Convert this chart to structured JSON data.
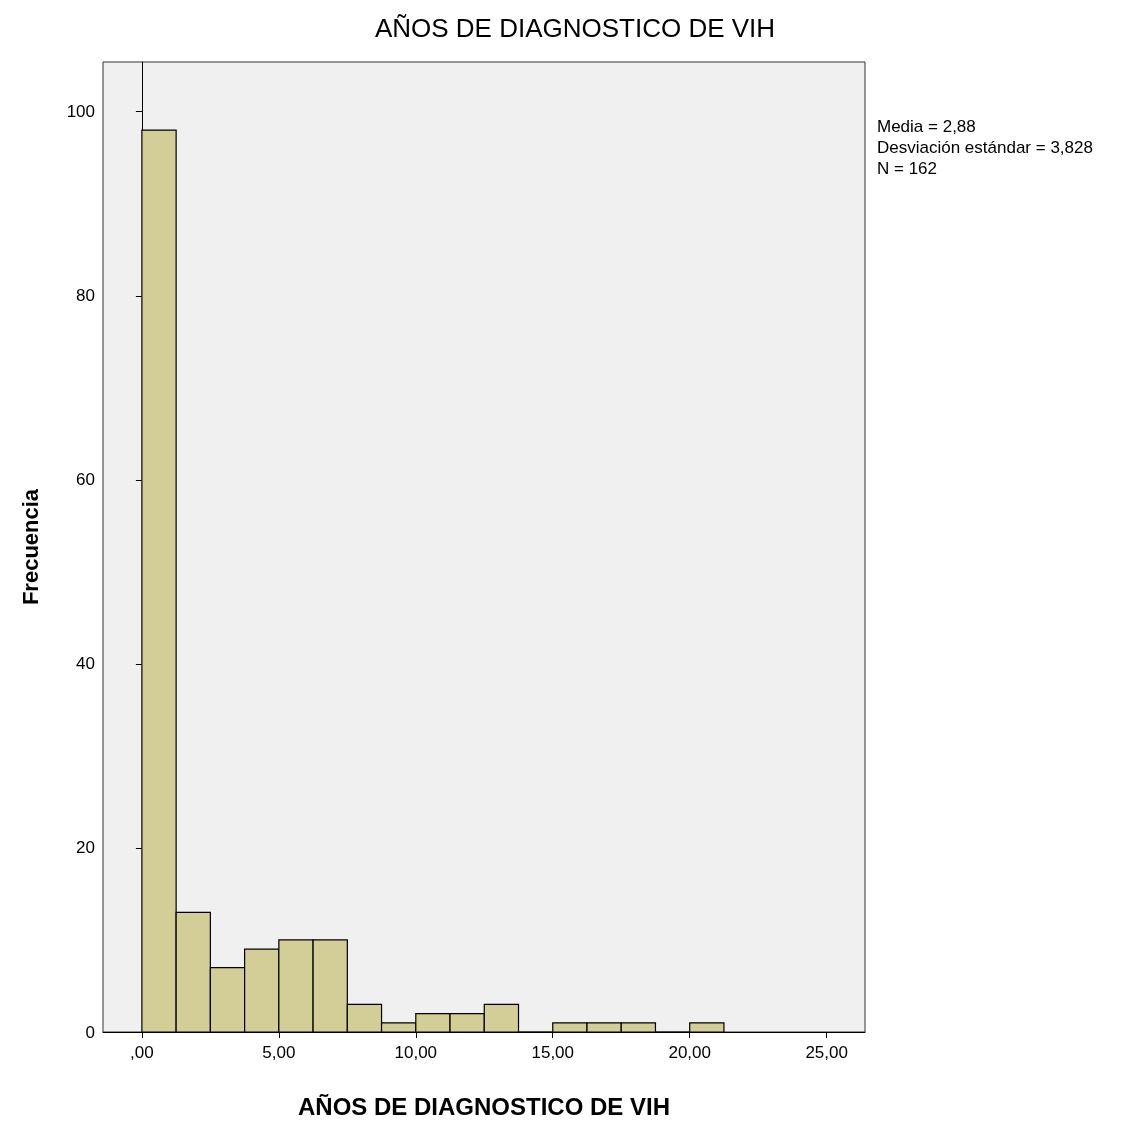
{
  "chart_data": {
    "type": "histogram",
    "title": "AÑOS DE DIAGNOSTICO DE VIH",
    "xlabel": "AÑOS DE DIAGNOSTICO DE VIH",
    "ylabel": "Frecuencia",
    "bins": [
      0,
      1.25,
      2.5,
      3.75,
      5,
      6.25,
      7.5,
      8.75,
      10,
      11.25,
      12.5,
      13.75,
      15,
      16.25,
      17.5,
      18.75,
      20,
      21.25
    ],
    "values": [
      98,
      13,
      7,
      9,
      10,
      10,
      3,
      1,
      2,
      2,
      3,
      0,
      1,
      1,
      1,
      0,
      1
    ],
    "color": "#d3ce97",
    "xlim": [
      -1.42,
      26.4
    ],
    "xticks": [
      {
        "value": 0,
        "label": ",00"
      },
      {
        "value": 5,
        "label": "5,00"
      },
      {
        "value": 10,
        "label": "10,00"
      },
      {
        "value": 15,
        "label": "15,00"
      },
      {
        "value": 20,
        "label": "20,00"
      },
      {
        "value": 25,
        "label": "25,00"
      }
    ],
    "ylim": [
      0,
      105.4
    ],
    "yticks": [
      0,
      20,
      40,
      60,
      80,
      100
    ],
    "annotations": [
      "Media = 2,88",
      "Desviación estándar = 3,828",
      "N = 162"
    ]
  }
}
